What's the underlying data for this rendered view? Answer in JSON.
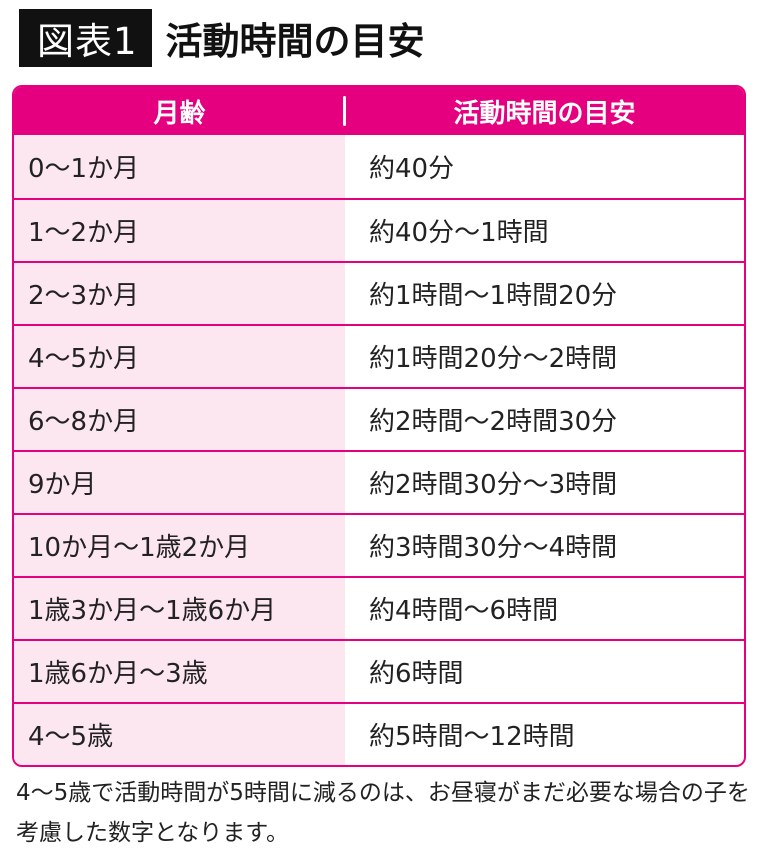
{
  "title": {
    "tag": "図表1",
    "text": "活動時間の目安"
  },
  "table": {
    "headers": [
      "月齢",
      "活動時間の目安"
    ],
    "rows": [
      [
        "0〜1か月",
        "約40分"
      ],
      [
        "1〜2か月",
        "約40分〜1時間"
      ],
      [
        "2〜3か月",
        "約1時間〜1時間20分"
      ],
      [
        "4〜5か月",
        "約1時間20分〜2時間"
      ],
      [
        "6〜8か月",
        "約2時間〜2時間30分"
      ],
      [
        "9か月",
        "約2時間30分〜3時間"
      ],
      [
        "10か月〜1歳2か月",
        "約3時間30分〜4時間"
      ],
      [
        "1歳3か月〜1歳6か月",
        "約4時間〜6時間"
      ],
      [
        "1歳6か月〜3歳",
        "約6時間"
      ],
      [
        "4〜5歳",
        "約5時間〜12時間"
      ]
    ]
  },
  "note": "4〜5歳で活動時間が5時間に減るのは、お昼寝がまだ必要な場合の子を考慮した数字となります。",
  "colors": {
    "accent": "#e4007f",
    "row_tint": "#fce6f0",
    "title_bg": "#111111"
  }
}
